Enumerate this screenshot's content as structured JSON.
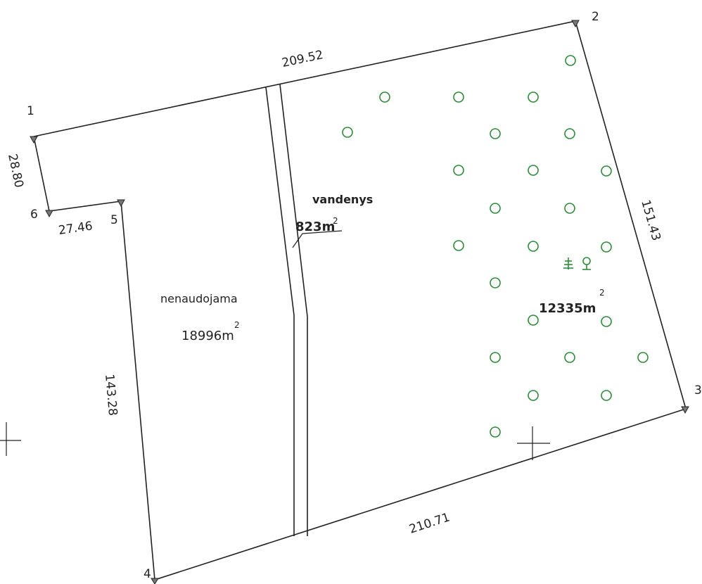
{
  "points": [
    {
      "label": "1"
    },
    {
      "label": "2"
    },
    {
      "label": "3"
    },
    {
      "label": "4"
    },
    {
      "label": "5"
    },
    {
      "label": "6"
    }
  ],
  "dimensions": {
    "d12": "209.52",
    "d23": "151.43",
    "d34": "210.71",
    "d45": "143.28",
    "d56": "27.46",
    "d61": "28.80"
  },
  "areas": {
    "left_name": "nenaudojama",
    "left_value": "18996m",
    "left_sup": "2",
    "stream_name": "vandenys",
    "stream_value": "823m",
    "stream_sup": "2",
    "right_value": "12335m",
    "right_sup": "2"
  },
  "tree_count": 26,
  "colors": {
    "lines": "#222222",
    "trees": "#2e8b3a"
  }
}
